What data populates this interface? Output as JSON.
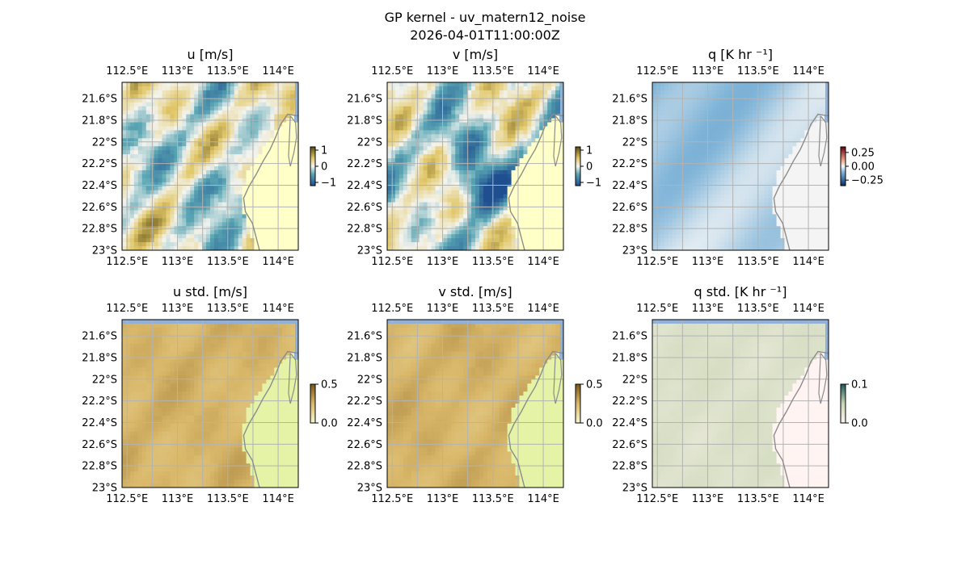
{
  "figure": {
    "title_line1": "GP kernel - uv_matern12_noise",
    "title_line2": "2026-04-01T11:00:00Z"
  },
  "map_axes": {
    "x_ticks": [
      "112.5°E",
      "113°E",
      "113.5°E",
      "114°E"
    ],
    "x_tick_values": [
      112.5,
      113.0,
      113.5,
      114.0
    ],
    "y_ticks": [
      "21.6°S",
      "21.8°S",
      "22°S",
      "22.2°S",
      "22.4°S",
      "22.6°S",
      "22.8°S",
      "23°S"
    ],
    "y_tick_values": [
      -21.6,
      -21.8,
      -22.0,
      -22.2,
      -22.4,
      -22.6,
      -22.8,
      -23.0
    ],
    "lon_range": [
      112.45,
      114.2
    ],
    "lat_range": [
      -23.0,
      -21.45
    ],
    "grid": true,
    "coastline": true
  },
  "chart_data": [
    {
      "type": "heatmap",
      "title": "u [m/s]",
      "colorbar": {
        "ticks": [
          "1",
          "0",
          "−1"
        ],
        "tick_values": [
          1,
          0,
          -1
        ],
        "range": [
          -1.2,
          1.2
        ],
        "palette": "diverging"
      }
    },
    {
      "type": "heatmap",
      "title": "v [m/s]",
      "colorbar": {
        "ticks": [
          "1",
          "0",
          "−1"
        ],
        "tick_values": [
          1,
          0,
          -1
        ],
        "range": [
          -1.2,
          1.2
        ],
        "palette": "diverging"
      }
    },
    {
      "type": "heatmap",
      "title": "q [K hr ⁻¹]",
      "colorbar": {
        "ticks": [
          "0.25",
          "0.00",
          "−0.25"
        ],
        "tick_values": [
          0.25,
          0,
          -0.25
        ],
        "range": [
          -0.35,
          0.35
        ],
        "palette": "diverging-rb"
      }
    },
    {
      "type": "heatmap",
      "title": "u std. [m/s]",
      "colorbar": {
        "ticks": [
          "0.5",
          "0.0"
        ],
        "tick_values": [
          0.5,
          0
        ],
        "range": [
          0,
          0.5
        ],
        "palette": "sequential-earth"
      }
    },
    {
      "type": "heatmap",
      "title": "v std. [m/s]",
      "colorbar": {
        "ticks": [
          "0.5",
          "0.0"
        ],
        "tick_values": [
          0.5,
          0
        ],
        "range": [
          0,
          0.5
        ],
        "palette": "sequential-earth"
      }
    },
    {
      "type": "heatmap",
      "title": "q std. [K hr ⁻¹]",
      "colorbar": {
        "ticks": [
          "0.1",
          "0.0"
        ],
        "tick_values": [
          0.1,
          0
        ],
        "range": [
          0,
          0.1
        ],
        "palette": "sequential-pale"
      }
    }
  ],
  "colors": {
    "ocean_mask": "#8fb0d8",
    "land_u_v": "#ffffc8",
    "land_std": "#e4f3a6",
    "land_q": "#f4f4f4",
    "land_qstd": "#fff4f2",
    "grid": "#b3b3b3",
    "coast": "#8c8c8c"
  }
}
